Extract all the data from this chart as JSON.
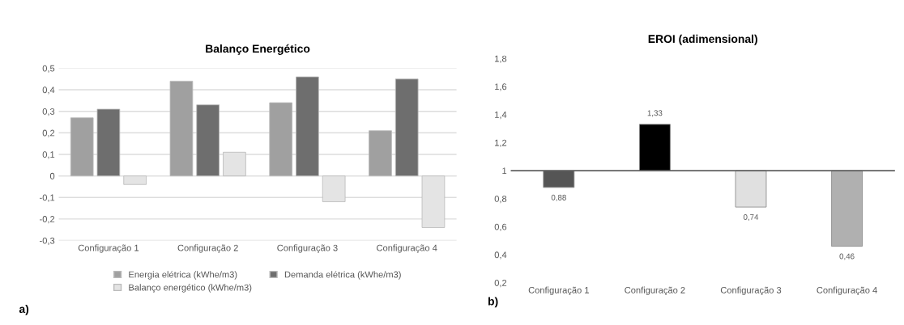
{
  "chart_data": [
    {
      "type": "bar",
      "title": "Balanço Energético",
      "categories": [
        "Configuração 1",
        "Configuração 2",
        "Configuração 3",
        "Configuração 4"
      ],
      "series": [
        {
          "name": "Energia elétrica (kWhe/m3)",
          "color": "#a0a0a0",
          "values": [
            0.27,
            0.44,
            0.34,
            0.21
          ]
        },
        {
          "name": "Demanda elétrica (kWhe/m3)",
          "color": "#6e6e6e",
          "values": [
            0.31,
            0.33,
            0.46,
            0.45
          ]
        },
        {
          "name": "Balanço energético (kWhe/m3)",
          "color": "#e4e4e4",
          "values": [
            -0.04,
            0.11,
            -0.12,
            -0.24
          ]
        }
      ],
      "ylim": [
        -0.3,
        0.5
      ],
      "yticks": [
        {
          "value": -0.3,
          "label": "-0,3"
        },
        {
          "value": -0.2,
          "label": "-0,2"
        },
        {
          "value": -0.1,
          "label": "-0,1"
        },
        0,
        {
          "value": 0.1,
          "label": "0,1"
        },
        {
          "value": 0.2,
          "label": "0,2"
        },
        {
          "value": 0.3,
          "label": "0,3"
        },
        {
          "value": 0.4,
          "label": "0,4"
        },
        {
          "value": 0.5,
          "label": "0,5"
        }
      ],
      "grid": "y",
      "legend": "bottom",
      "annotations": [
        "a)"
      ]
    },
    {
      "type": "bar",
      "title": "EROI (adimensional)",
      "categories": [
        "Configuração 1",
        "Configuração 2",
        "Configuração 3",
        "Configuração 4"
      ],
      "base": [
        1,
        1,
        1,
        1
      ],
      "values": [
        -0.12,
        0.33,
        -0.26,
        -0.54
      ],
      "colors": [
        "#555555",
        "#000000",
        "#e0e0e0",
        "#b0b0b0"
      ],
      "value_labels": [
        "0,88",
        "1,33",
        "0,74",
        "0,46"
      ],
      "ylim": [
        0.2,
        1.8
      ],
      "yticks": [
        {
          "value": 0.2,
          "label": "0,2"
        },
        {
          "value": 0.4,
          "label": "0,4"
        },
        {
          "value": 0.6,
          "label": "0,6"
        },
        {
          "value": 0.8,
          "label": "0,8"
        },
        1,
        {
          "value": 1.2,
          "label": "1,2"
        },
        {
          "value": 1.4,
          "label": "1,4"
        },
        {
          "value": 1.6,
          "label": "1,6"
        },
        {
          "value": 1.8,
          "label": "1,8"
        }
      ],
      "ref_lines": [
        {
          "axis": "y",
          "value": 1,
          "color": "#606060"
        }
      ],
      "grid": false,
      "annotations": [
        "b)"
      ]
    }
  ]
}
